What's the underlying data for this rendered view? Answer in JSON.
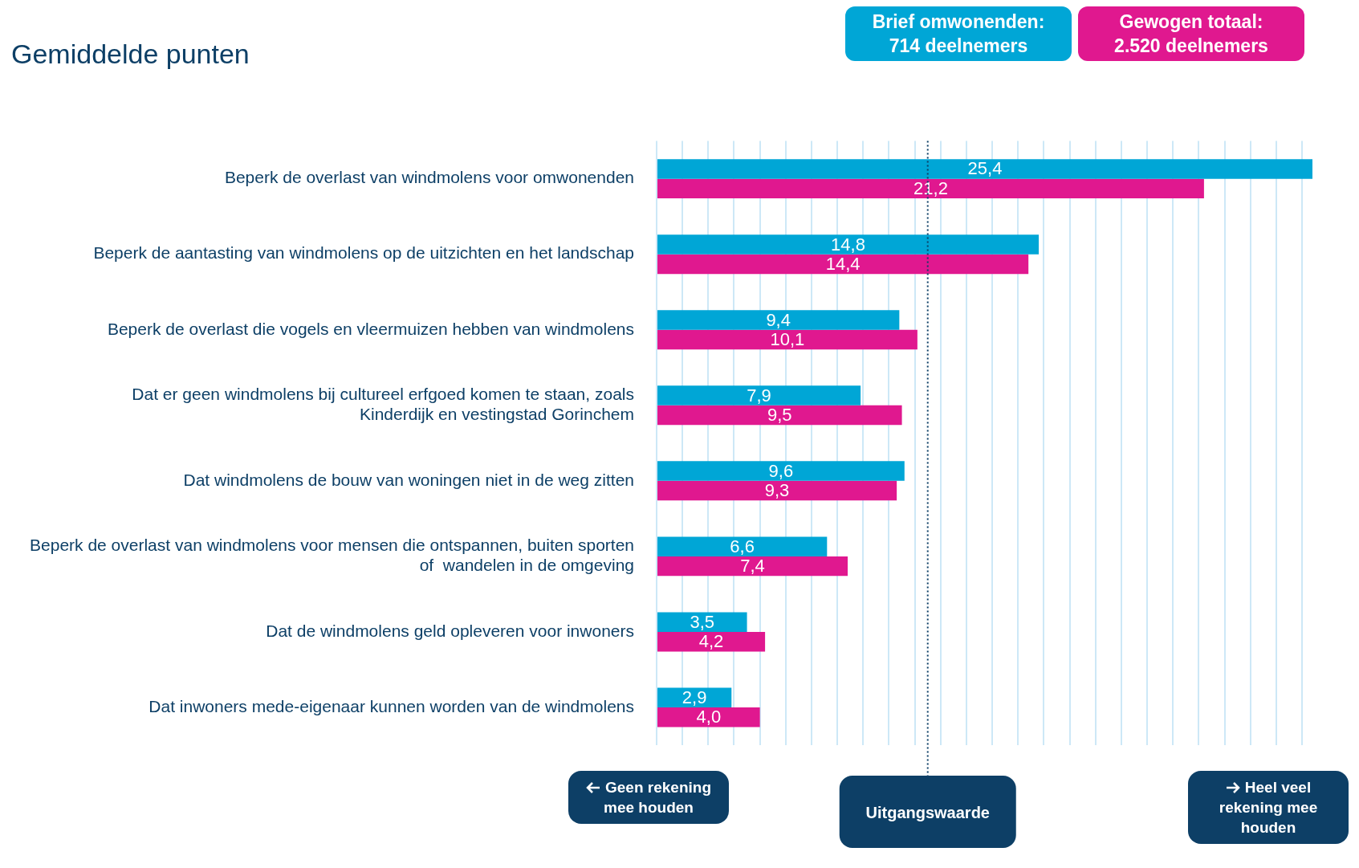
{
  "chart_data": {
    "type": "bar",
    "orientation": "horizontal",
    "title": "Gemiddelde punten",
    "categories": [
      "Beperk de overlast van windmolens voor omwonenden",
      "Beperk de aantasting van windmolens op de uitzichten en het landschap",
      "Beperk de overlast die vogels en vleermuizen hebben van windmolens",
      "Dat er geen windmolens bij cultureel erfgoed komen te staan, zoals Kinderdijk en vestingstad Gorinchem",
      "Dat windmolens de bouw van woningen niet in de weg zitten",
      "Beperk de overlast van windmolens voor mensen die ontspannen, buiten sporten of  wandelen in de omgeving",
      "Dat de windmolens geld opleveren voor inwoners",
      "Dat inwoners mede-eigenaar kunnen worden van de windmolens"
    ],
    "series": [
      {
        "name": "Brief omwonenden: 714 deelnemers",
        "color": "#00a6d6",
        "values": [
          25.4,
          14.8,
          9.4,
          7.9,
          9.6,
          6.6,
          3.5,
          2.9
        ],
        "value_labels": [
          "25,4",
          "14,8",
          "9,4",
          "7,9",
          "9,6",
          "6,6",
          "3,5",
          "2,9"
        ]
      },
      {
        "name": "Gewogen totaal: 2.520 deelnemers",
        "color": "#e0188f",
        "values": [
          21.2,
          14.4,
          10.1,
          9.5,
          9.3,
          7.4,
          4.2,
          4.0
        ],
        "value_labels": [
          "21,2",
          "14,4",
          "10,1",
          "9,5",
          "9,3",
          "7,4",
          "4,2",
          "4,0"
        ]
      }
    ],
    "xlim": [
      0,
      25.4
    ],
    "xticks": [
      {
        "value": 0,
        "label": null
      },
      {
        "value": 1,
        "label": null
      },
      {
        "value": 2,
        "label": null
      },
      {
        "value": 3,
        "label": null
      },
      {
        "value": 4,
        "label": null
      },
      {
        "value": 5,
        "label": null
      },
      {
        "value": 6,
        "label": null
      },
      {
        "value": 7,
        "label": null
      },
      {
        "value": 8,
        "label": null
      },
      {
        "value": 9,
        "label": null
      },
      {
        "value": 10,
        "label": null
      },
      {
        "value": 11,
        "label": null
      },
      {
        "value": 12,
        "label": null
      },
      {
        "value": 13,
        "label": null
      },
      {
        "value": 14,
        "label": null
      },
      {
        "value": 15,
        "label": null
      },
      {
        "value": 16,
        "label": null
      },
      {
        "value": 17,
        "label": null
      },
      {
        "value": 18,
        "label": null
      },
      {
        "value": 19,
        "label": null
      },
      {
        "value": 20,
        "label": null
      },
      {
        "value": 21,
        "label": null
      },
      {
        "value": 22,
        "label": null
      },
      {
        "value": 23,
        "label": null
      },
      {
        "value": 24,
        "label": null
      },
      {
        "value": 25,
        "label": null
      }
    ],
    "grid": "x",
    "tick_labels": "y",
    "legend": "top right",
    "ref_lines": [
      {
        "axis": "x",
        "value": 10.5,
        "label": "Uitgangswaarde",
        "color": "#0d3f66",
        "line_style": "dotted"
      }
    ],
    "annotations": [
      "Geen rekening mee houden",
      "Heel veel rekening mee houden"
    ]
  }
}
